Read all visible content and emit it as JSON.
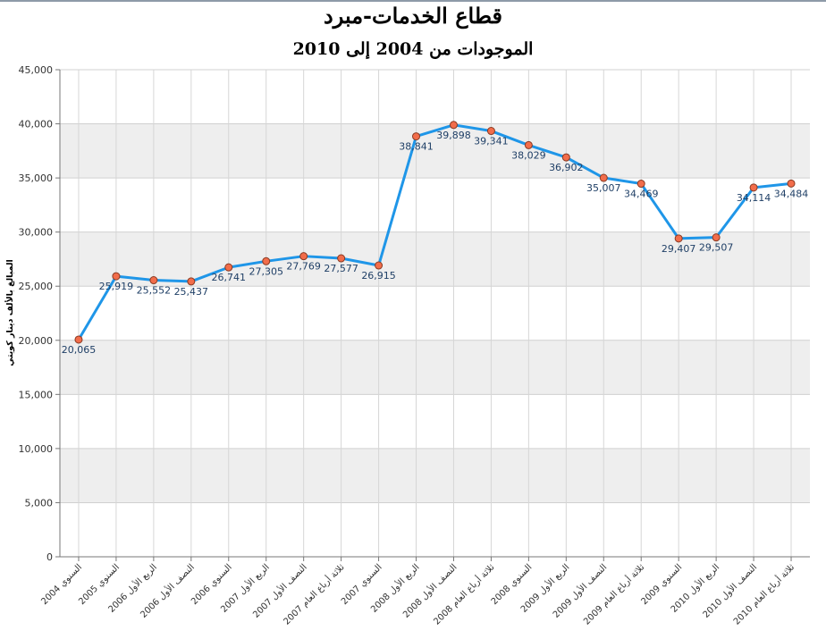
{
  "chart_data": {
    "type": "line",
    "title": "قطاع الخدمات-مبرد",
    "subtitle": "الموجودات من 2004 إلى 2010",
    "ylabel": "المبالغ بالألف دينار كويتي",
    "xlabel": "",
    "ylim": [
      0,
      45000
    ],
    "yticks": [
      "0",
      "5,000",
      "10,000",
      "15,000",
      "20,000",
      "25,000",
      "30,000",
      "35,000",
      "40,000",
      "45,000"
    ],
    "categories": [
      "السنوي 2004",
      "السنوي 2005",
      "الربع الأول 2006",
      "النصف الأول 2006",
      "السنوي 2006",
      "الربع الأول 2007",
      "النصف الأول 2007",
      "ثلاثة أرباع العام 2007",
      "السنوي 2007",
      "الربع الأول 2008",
      "النصف الأول 2008",
      "ثلاثة أرباع العام 2008",
      "السنوي 2008",
      "الربع الأول 2009",
      "النصف الأول 2009",
      "ثلاثة أرباع العام 2009",
      "السنوي 2009",
      "الربع الأول 2010",
      "النصف الأول 2010",
      "ثلاثة أرباع العام 2010"
    ],
    "values": [
      20065,
      25919,
      25552,
      25437,
      26741,
      27305,
      27769,
      27577,
      26915,
      38841,
      39898,
      39341,
      38029,
      36902,
      35007,
      34469,
      29407,
      29507,
      34114,
      34484
    ],
    "data_labels": [
      "20,065",
      "25,919",
      "25,552",
      "25,437",
      "26,741",
      "27,305",
      "27,769",
      "27,577",
      "26,915",
      "38,841",
      "39,898",
      "39,341",
      "38,029",
      "36,902",
      "35,007",
      "34,469",
      "29,407",
      "29,507",
      "34,114",
      "34,484"
    ],
    "grid": true,
    "band_color": "#eeeeee",
    "line_color": "#1f96e8",
    "marker_fill": "#f26d4b",
    "marker_stroke": "#8a3a22"
  }
}
